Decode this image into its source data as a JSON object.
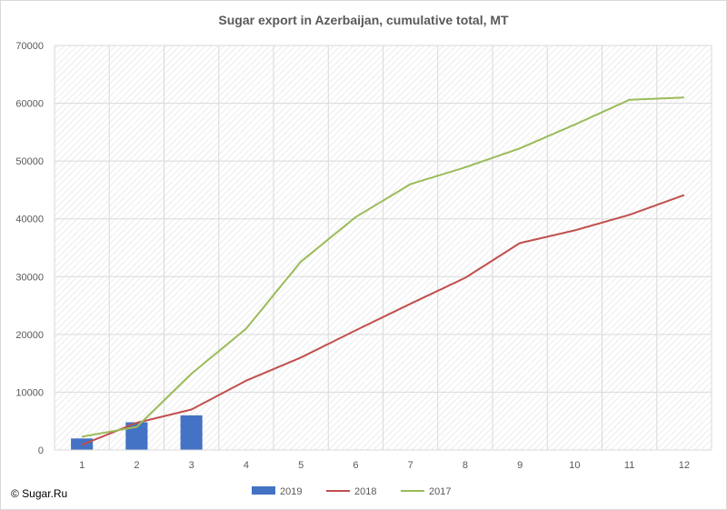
{
  "chart_data": {
    "type": "bar+line",
    "title": "Sugar export in Azerbaijan, cumulative total, MT",
    "xlabel": "",
    "ylabel": "",
    "categories": [
      "1",
      "2",
      "3",
      "4",
      "5",
      "6",
      "7",
      "8",
      "9",
      "10",
      "11",
      "12"
    ],
    "ylim": [
      0,
      70000
    ],
    "yticks": [
      0,
      10000,
      20000,
      30000,
      40000,
      50000,
      60000,
      70000
    ],
    "grid": true,
    "legend_position": "bottom",
    "series": [
      {
        "name": "2019",
        "kind": "bar",
        "color": "#4472c4",
        "values": [
          2000,
          4800,
          6000,
          null,
          null,
          null,
          null,
          null,
          null,
          null,
          null,
          null
        ]
      },
      {
        "name": "2018",
        "kind": "line",
        "color": "#c0504d",
        "values": [
          900,
          4700,
          7000,
          12000,
          16000,
          20700,
          25300,
          29800,
          35800,
          38000,
          40700,
          44100
        ]
      },
      {
        "name": "2017",
        "kind": "line",
        "color": "#9bbb59",
        "values": [
          2300,
          4000,
          13200,
          21000,
          32600,
          40300,
          46000,
          48900,
          52200,
          56300,
          60600,
          61000
        ]
      }
    ]
  },
  "footer": {
    "copyright": "© Sugar.Ru"
  }
}
